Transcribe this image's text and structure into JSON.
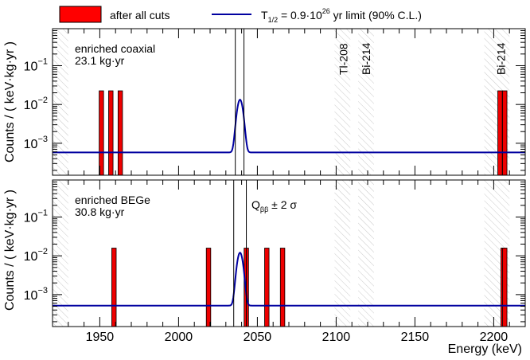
{
  "legend": {
    "entries": [
      {
        "label": "after all cuts",
        "color": "#ff0000",
        "kind": "box"
      },
      {
        "label_prefix": "T",
        "label_sub": "1/2",
        "label_mid": " = 0.9·10",
        "label_sup": "26",
        "label_suffix": " yr limit (90% C.L.)",
        "color": "#0000a0",
        "kind": "line"
      }
    ]
  },
  "chart_data": [
    {
      "type": "bar",
      "panel": "top",
      "annotation": {
        "line1": "enriched coaxial",
        "line2": "23.1 kg·yr"
      },
      "ylabel": "Counts / ( keV·kg·yr )",
      "xlim": [
        1920,
        2220
      ],
      "ylog": true,
      "ylim": [
        0.00015,
        0.9
      ],
      "y_ticks": [
        {
          "value": 0.001,
          "label": "10",
          "exp": "−3"
        },
        {
          "value": 0.01,
          "label": "10",
          "exp": "−2"
        },
        {
          "value": 0.1,
          "label": "10",
          "exp": "−1"
        }
      ],
      "events": [
        {
          "x": 1951,
          "y": 0.0225
        },
        {
          "x": 1957,
          "y": 0.0225
        },
        {
          "x": 1963,
          "y": 0.0225
        },
        {
          "x": 2204,
          "y": 0.0225
        },
        {
          "x": 2207,
          "y": 0.0225
        }
      ],
      "background_level": 0.00058,
      "peak": {
        "center": 2039,
        "height": 0.0127,
        "sigma": 1.6
      },
      "window": [
        2036,
        2041.5
      ],
      "hatched_regions": [
        [
          1920,
          1930
        ],
        [
          2099,
          2109
        ],
        [
          2114,
          2124
        ],
        [
          2194,
          2210
        ]
      ],
      "line_labels": [
        {
          "text": "Tl-208",
          "x": 2104.5
        },
        {
          "text": "Bi-214",
          "x": 2119
        },
        {
          "text": "Bi-214",
          "x": 2204.5
        }
      ]
    },
    {
      "type": "bar",
      "panel": "bottom",
      "annotation": {
        "line1": "enriched BEGe",
        "line2": "30.8 kg·yr"
      },
      "qbb_label": {
        "prefix": "Q",
        "sub": "ββ",
        "suffix": " ± 2 σ"
      },
      "ylabel": "Counts / ( keV·kg·yr )",
      "xlabel": "Energy (keV)",
      "xlim": [
        1920,
        2220
      ],
      "ylog": true,
      "ylim": [
        0.00015,
        0.9
      ],
      "x_ticks": [
        1950,
        2000,
        2050,
        2100,
        2150,
        2200
      ],
      "y_ticks": [
        {
          "value": 0.001,
          "label": "10",
          "exp": "−3"
        },
        {
          "value": 0.01,
          "label": "10",
          "exp": "−2"
        },
        {
          "value": 0.1,
          "label": "10",
          "exp": "−1"
        }
      ],
      "events": [
        {
          "x": 1959,
          "y": 0.0158
        },
        {
          "x": 2019,
          "y": 0.0158
        },
        {
          "x": 2043,
          "y": 0.0158
        },
        {
          "x": 2056,
          "y": 0.0158
        },
        {
          "x": 2066,
          "y": 0.0158
        },
        {
          "x": 2206,
          "y": 0.0158
        },
        {
          "x": 2207,
          "y": 0.0158
        }
      ],
      "background_level": 0.00052,
      "peak": {
        "center": 2039,
        "height": 0.0115,
        "sigma": 1.6
      },
      "window": [
        2035,
        2043
      ],
      "hatched_regions": [
        [
          1920,
          1930
        ],
        [
          2099,
          2109
        ],
        [
          2114,
          2124
        ],
        [
          2194,
          2210
        ]
      ]
    }
  ]
}
